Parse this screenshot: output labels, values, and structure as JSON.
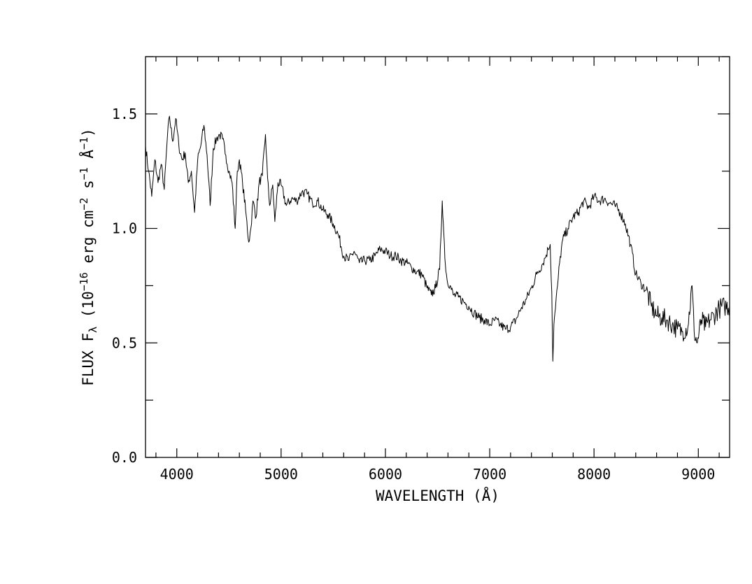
{
  "chart_data": {
    "type": "line",
    "title": "",
    "xlabel": "WAVELENGTH (Å)",
    "ylabel": {
      "prefix": "FLUX F",
      "prefix_sub": "λ",
      "mid": " (10",
      "exp1": "−16",
      "after1": " erg cm",
      "exp2": "−2",
      "after2": " s",
      "exp3": "−1",
      "after3": " Å",
      "exp4": "−1",
      "suffix": ")"
    },
    "xlim": [
      3700,
      9300
    ],
    "ylim": [
      0.0,
      1.75
    ],
    "x_ticks": [
      {
        "value": 4000,
        "label": "4000"
      },
      {
        "value": 5000,
        "label": "5000"
      },
      {
        "value": 6000,
        "label": "6000"
      },
      {
        "value": 7000,
        "label": "7000"
      },
      {
        "value": 8000,
        "label": "8000"
      },
      {
        "value": 9000,
        "label": "9000"
      }
    ],
    "x_minor_step": 200,
    "y_ticks": [
      {
        "value": 0.0,
        "label": "0.0"
      },
      {
        "value": 0.5,
        "label": "0.5"
      },
      {
        "value": 1.0,
        "label": "1.0"
      },
      {
        "value": 1.5,
        "label": "1.5"
      }
    ],
    "y_minor_step": 0.25,
    "grid": false,
    "series": [
      {
        "x": [
          3700,
          3730,
          3760,
          3790,
          3820,
          3850,
          3880,
          3910,
          3930,
          3960,
          3990,
          4020,
          4050,
          4080,
          4110,
          4140,
          4170,
          4200,
          4230,
          4260,
          4290,
          4320,
          4350,
          4380,
          4410,
          4440,
          4470,
          4500,
          4530,
          4560,
          4580,
          4600,
          4630,
          4660,
          4690,
          4710,
          4730,
          4760,
          4790,
          4820,
          4850,
          4870,
          4890,
          4920,
          4940,
          4970,
          5000,
          5050,
          5100,
          5150,
          5200,
          5250,
          5300,
          5350,
          5400,
          5450,
          5500,
          5550,
          5600,
          5650,
          5700,
          5750,
          5800,
          5850,
          5900,
          5950,
          6000,
          6050,
          6100,
          6150,
          6200,
          6250,
          6300,
          6350,
          6400,
          6440,
          6480,
          6520,
          6545,
          6560,
          6575,
          6590,
          6620,
          6650,
          6700,
          6750,
          6800,
          6850,
          6900,
          6950,
          7000,
          7050,
          7100,
          7150,
          7200,
          7250,
          7300,
          7350,
          7400,
          7450,
          7500,
          7530,
          7560,
          7580,
          7595,
          7605,
          7615,
          7630,
          7650,
          7670,
          7700,
          7750,
          7800,
          7850,
          7900,
          7950,
          8000,
          8050,
          8100,
          8150,
          8200,
          8250,
          8300,
          8350,
          8400,
          8450,
          8500,
          8550,
          8600,
          8650,
          8700,
          8750,
          8800,
          8850,
          8900,
          8940,
          8960,
          8990,
          9030,
          9070,
          9110,
          9150,
          9200,
          9250,
          9300
        ],
        "y": [
          1.36,
          1.25,
          1.14,
          1.3,
          1.2,
          1.28,
          1.17,
          1.4,
          1.49,
          1.38,
          1.48,
          1.36,
          1.3,
          1.33,
          1.2,
          1.25,
          1.07,
          1.3,
          1.36,
          1.45,
          1.32,
          1.1,
          1.35,
          1.39,
          1.41,
          1.39,
          1.32,
          1.25,
          1.2,
          1.0,
          1.25,
          1.3,
          1.2,
          1.08,
          0.94,
          1.0,
          1.12,
          1.05,
          1.2,
          1.23,
          1.41,
          1.22,
          1.1,
          1.19,
          1.03,
          1.2,
          1.19,
          1.1,
          1.13,
          1.12,
          1.16,
          1.15,
          1.11,
          1.12,
          1.08,
          1.06,
          1.02,
          0.97,
          0.88,
          0.86,
          0.9,
          0.85,
          0.86,
          0.86,
          0.88,
          0.91,
          0.9,
          0.88,
          0.88,
          0.86,
          0.85,
          0.83,
          0.81,
          0.8,
          0.74,
          0.71,
          0.74,
          0.82,
          1.12,
          0.98,
          0.84,
          0.78,
          0.75,
          0.71,
          0.7,
          0.68,
          0.66,
          0.63,
          0.61,
          0.6,
          0.58,
          0.6,
          0.58,
          0.56,
          0.57,
          0.6,
          0.65,
          0.69,
          0.74,
          0.8,
          0.84,
          0.87,
          0.91,
          0.93,
          0.72,
          0.42,
          0.58,
          0.65,
          0.75,
          0.85,
          0.95,
          1.0,
          1.05,
          1.07,
          1.12,
          1.09,
          1.14,
          1.12,
          1.13,
          1.11,
          1.1,
          1.07,
          1.02,
          0.93,
          0.8,
          0.76,
          0.73,
          0.66,
          0.62,
          0.61,
          0.6,
          0.58,
          0.56,
          0.55,
          0.57,
          0.75,
          0.55,
          0.5,
          0.6,
          0.57,
          0.6,
          0.62,
          0.65,
          0.66,
          0.66
        ]
      }
    ]
  }
}
